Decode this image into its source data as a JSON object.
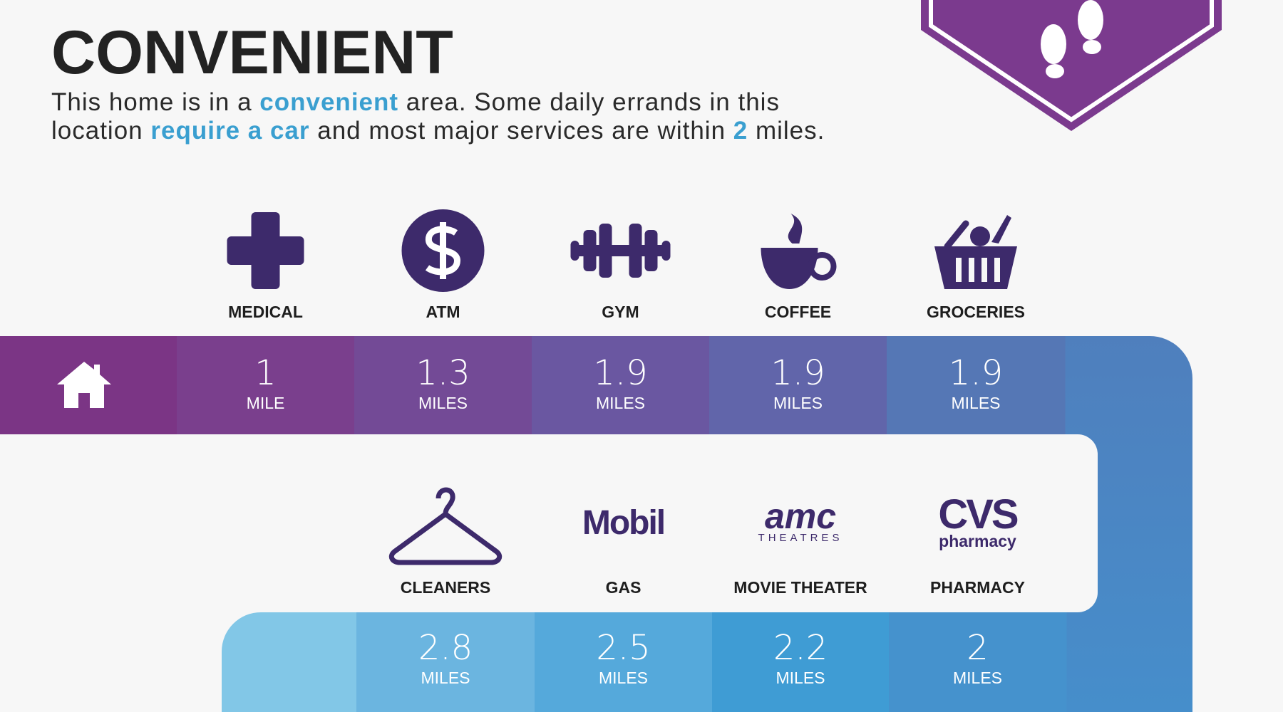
{
  "header": {
    "title": "CONVENIENT",
    "description": [
      [
        {
          "text": "This home is in a ",
          "highlight": false
        },
        {
          "text": "convenient",
          "highlight": true
        },
        {
          "text": " area. Some daily errands in this",
          "highlight": false
        }
      ],
      [
        {
          "text": "location ",
          "highlight": false
        },
        {
          "text": "require a car",
          "highlight": true
        },
        {
          "text": " and most major services are within ",
          "highlight": false
        },
        {
          "text": "2",
          "highlight": true
        },
        {
          "text": " miles.",
          "highlight": false
        }
      ]
    ]
  },
  "top_row": [
    {
      "label": "MEDICAL",
      "distance": 1,
      "unit": "MILE"
    },
    {
      "label": "ATM",
      "distance": 1.3,
      "unit": "MILES"
    },
    {
      "label": "GYM",
      "distance": 1.9,
      "unit": "MILES"
    },
    {
      "label": "COFFEE",
      "distance": 1.9,
      "unit": "MILES"
    },
    {
      "label": "GROCERIES",
      "distance": 1.9,
      "unit": "MILES"
    }
  ],
  "bottom_row": [
    {
      "label": "CLEANERS",
      "distance": 2.8,
      "unit": "MILES"
    },
    {
      "label": "GAS",
      "logo": [
        "Mobil"
      ],
      "distance": 2.5,
      "unit": "MILES"
    },
    {
      "label": "MOVIE THEATER",
      "logo": [
        "amc",
        "THEATRES"
      ],
      "distance": 2.2,
      "unit": "MILES"
    },
    {
      "label": "PHARMACY",
      "logo": [
        "CVS",
        "pharmacy"
      ],
      "distance": 2,
      "unit": "MILES"
    }
  ]
}
